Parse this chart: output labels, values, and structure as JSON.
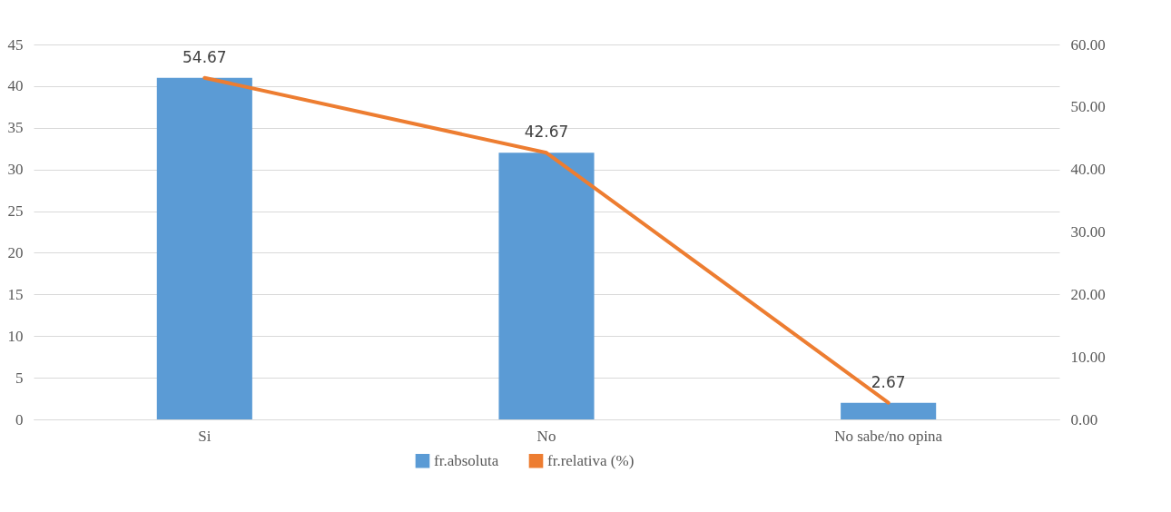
{
  "chart_data": {
    "type": "bar",
    "categories": [
      "Si",
      "No",
      "No sabe/no opina"
    ],
    "series": [
      {
        "name": "fr.absoluta",
        "color": "#5b9bd5",
        "values": [
          41,
          32,
          2
        ]
      },
      {
        "name": "fr.relativa (%)",
        "type": "line",
        "axis": "y2",
        "color": "#ed7d31",
        "values": [
          54.67,
          42.67,
          2.67
        ],
        "value_labels": [
          "54.67",
          "42.67",
          "2.67"
        ]
      }
    ],
    "ylim": [
      0,
      45
    ],
    "yticks": [
      0,
      5,
      10,
      15,
      20,
      25,
      30,
      35,
      40,
      45
    ],
    "y2lim": [
      0,
      60
    ],
    "y2ticks": [
      {
        "value": 0,
        "label": "0.00"
      },
      {
        "value": 10,
        "label": "10.00"
      },
      {
        "value": 20,
        "label": "20.00"
      },
      {
        "value": 30,
        "label": "30.00"
      },
      {
        "value": 40,
        "label": "40.00"
      },
      {
        "value": 50,
        "label": "50.00"
      },
      {
        "value": 60,
        "label": "60.00"
      }
    ],
    "grid": "y",
    "legend": "bottom"
  }
}
